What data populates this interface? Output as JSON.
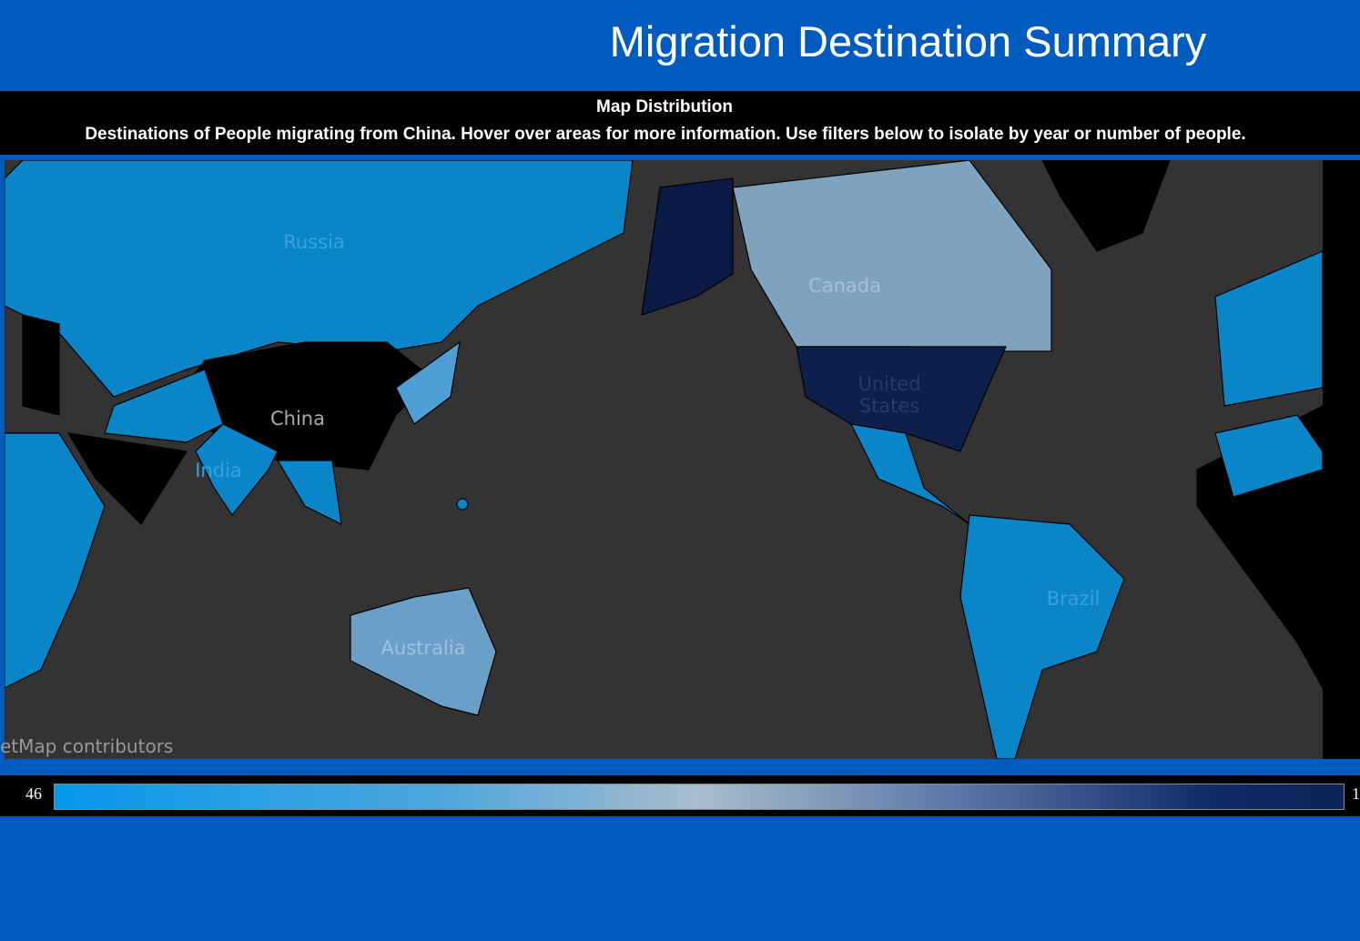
{
  "header": {
    "title": "Migration Destination Summary"
  },
  "map_panel": {
    "title": "Map Distribution",
    "subtitle": "Destinations of People migrating from China.  Hover over areas for more information.  Use filters below to isolate by year or number of people.",
    "labels": [
      "Russia",
      "Canada",
      "China",
      "United States",
      "India",
      "Australia",
      "Brazil"
    ],
    "attribution": "etMap contributors"
  },
  "legend": {
    "min_label": "46",
    "max_label": "1"
  }
}
